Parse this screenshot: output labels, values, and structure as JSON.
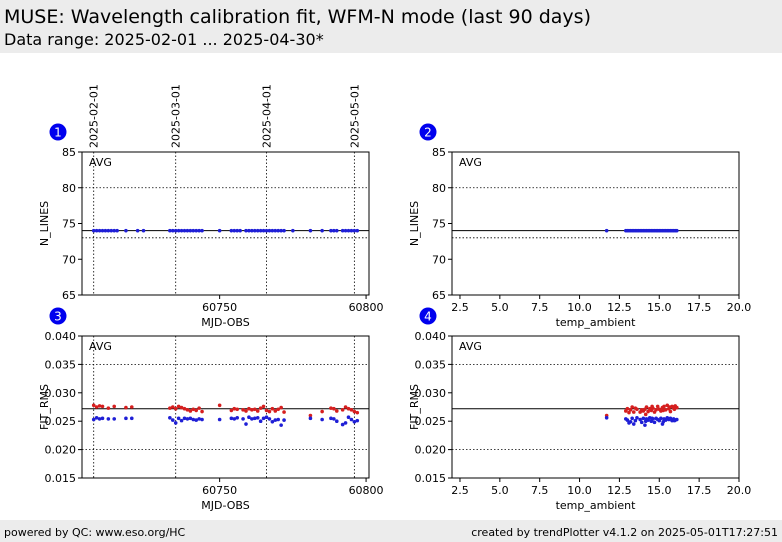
{
  "header": {
    "title": "MUSE: Wavelength calibration fit, WFM-N mode (last 90 days)",
    "subtitle": "Data range: 2025-02-01 ... 2025-04-30*"
  },
  "footer": {
    "left": "powered by QC: www.eso.org/HC",
    "right": "created by trendPlotter v4.1.2 on 2025-05-01T17:27:51"
  },
  "colors": {
    "marker_number_bg": "#0000ee",
    "series_blue": "#1f1fd6",
    "series_red": "#d61f1f",
    "header_bg": "#ececec"
  },
  "date_markers": [
    {
      "label": "2025-02-01",
      "mjd": 60707
    },
    {
      "label": "2025-03-01",
      "mjd": 60735
    },
    {
      "label": "2025-04-01",
      "mjd": 60766
    },
    {
      "label": "2025-05-01",
      "mjd": 60796
    }
  ],
  "chart_data": [
    {
      "panel": 1,
      "type": "scatter",
      "annotation": "AVG",
      "xlabel": "MJD-OBS",
      "ylabel": "N_LINES",
      "xlim": [
        60703,
        60801
      ],
      "ylim": [
        65,
        85
      ],
      "xticks": [
        60750,
        60800
      ],
      "yticks": [
        65,
        70,
        75,
        80,
        85
      ],
      "ref_line": 74,
      "dotted_lines": [
        80,
        73
      ],
      "vlines": [
        60707,
        60735,
        60766,
        60796
      ],
      "series": [
        {
          "color": "blue",
          "x": [
            60707,
            60708,
            60709,
            60710,
            60711,
            60712,
            60713,
            60714,
            60715,
            60718,
            60722,
            60724,
            60733,
            60734,
            60735,
            60736,
            60737,
            60738,
            60739,
            60740,
            60741,
            60742,
            60743,
            60744,
            60750,
            60754,
            60755,
            60756,
            60757,
            60759,
            60760,
            60761,
            60762,
            60763,
            60764,
            60765,
            60766,
            60767,
            60768,
            60769,
            60770,
            60771,
            60772,
            60775,
            60781,
            60785,
            60788,
            60789,
            60790,
            60792,
            60793,
            60794,
            60795,
            60796,
            60797
          ],
          "y": [
            74,
            74,
            74,
            74,
            74,
            74,
            74,
            74,
            74,
            74,
            74,
            74,
            74,
            74,
            74,
            74,
            74,
            74,
            74,
            74,
            74,
            74,
            74,
            74,
            74,
            74,
            74,
            74,
            74,
            74,
            74,
            74,
            74,
            74,
            74,
            74,
            74,
            74,
            74,
            74,
            74,
            74,
            74,
            74,
            74,
            74,
            74,
            74,
            74,
            74,
            74,
            74,
            74,
            74,
            74
          ]
        }
      ]
    },
    {
      "panel": 2,
      "type": "scatter",
      "annotation": "AVG",
      "xlabel": "temp_ambient",
      "ylabel": "N_LINES",
      "xlim": [
        2.0,
        20.0
      ],
      "ylim": [
        65,
        85
      ],
      "xticks": [
        2.5,
        5.0,
        7.5,
        10.0,
        12.5,
        15.0,
        17.5,
        20.0
      ],
      "yticks": [
        65,
        70,
        75,
        80,
        85
      ],
      "ref_line": 74,
      "dotted_lines": [
        80,
        73
      ],
      "series": [
        {
          "color": "blue",
          "x": [
            11.7,
            12.9,
            13.0,
            13.1,
            13.2,
            13.3,
            13.4,
            13.5,
            13.6,
            13.7,
            13.8,
            13.9,
            14.0,
            14.1,
            14.2,
            14.3,
            14.4,
            14.5,
            14.6,
            14.7,
            14.8,
            14.9,
            15.0,
            15.1,
            15.2,
            15.3,
            15.4,
            15.5,
            15.6,
            15.7,
            15.8,
            15.9,
            16.0,
            16.1
          ],
          "y": [
            74,
            74,
            74,
            74,
            74,
            74,
            74,
            74,
            74,
            74,
            74,
            74,
            74,
            74,
            74,
            74,
            74,
            74,
            74,
            74,
            74,
            74,
            74,
            74,
            74,
            74,
            74,
            74,
            74,
            74,
            74,
            74,
            74,
            74
          ]
        }
      ]
    },
    {
      "panel": 3,
      "type": "scatter",
      "annotation": "AVG",
      "xlabel": "MJD-OBS",
      "ylabel": "FIT_RMS",
      "xlim": [
        60703,
        60801
      ],
      "ylim": [
        0.015,
        0.04
      ],
      "xticks": [
        60750,
        60800
      ],
      "yticks": [
        0.015,
        0.02,
        0.025,
        0.03,
        0.035,
        0.04
      ],
      "ref_line": 0.0272,
      "dotted_lines": [
        0.035,
        0.02
      ],
      "vlines": [
        60707,
        60735,
        60766,
        60796
      ],
      "series": [
        {
          "color": "red",
          "x": [
            60707,
            60708,
            60709,
            60710,
            60712,
            60714,
            60718,
            60720,
            60733,
            60734,
            60735,
            60736,
            60737,
            60738,
            60739,
            60740,
            60741,
            60742,
            60743,
            60744,
            60750,
            60754,
            60755,
            60756,
            60758,
            60759,
            60760,
            60761,
            60762,
            60763,
            60764,
            60765,
            60766,
            60767,
            60768,
            60769,
            60770,
            60771,
            60772,
            60781,
            60785,
            60788,
            60789,
            60790,
            60792,
            60793,
            60794,
            60795,
            60796,
            60797
          ],
          "y": [
            0.0278,
            0.0275,
            0.0277,
            0.0276,
            0.0273,
            0.0276,
            0.0274,
            0.0275,
            0.0273,
            0.0275,
            0.0272,
            0.0276,
            0.0274,
            0.0272,
            0.027,
            0.0268,
            0.0271,
            0.0269,
            0.0273,
            0.0267,
            0.0278,
            0.0269,
            0.0272,
            0.0271,
            0.027,
            0.0268,
            0.0272,
            0.027,
            0.0271,
            0.0268,
            0.0273,
            0.0276,
            0.0269,
            0.0267,
            0.0272,
            0.0268,
            0.0271,
            0.0274,
            0.0266,
            0.026,
            0.0267,
            0.0273,
            0.0272,
            0.0268,
            0.027,
            0.0275,
            0.0272,
            0.027,
            0.0267,
            0.0265
          ]
        },
        {
          "color": "blue",
          "x": [
            60707,
            60708,
            60709,
            60710,
            60712,
            60714,
            60718,
            60720,
            60733,
            60734,
            60735,
            60736,
            60737,
            60738,
            60739,
            60740,
            60741,
            60742,
            60743,
            60744,
            60750,
            60754,
            60755,
            60756,
            60758,
            60759,
            60760,
            60761,
            60762,
            60763,
            60764,
            60765,
            60766,
            60767,
            60768,
            60769,
            60770,
            60771,
            60772,
            60781,
            60785,
            60788,
            60789,
            60790,
            60792,
            60793,
            60794,
            60795,
            60796,
            60797
          ],
          "y": [
            0.0253,
            0.0256,
            0.0254,
            0.0255,
            0.0254,
            0.0254,
            0.0255,
            0.0255,
            0.0256,
            0.0252,
            0.0247,
            0.0255,
            0.0251,
            0.0255,
            0.0254,
            0.0255,
            0.0253,
            0.0252,
            0.0254,
            0.0253,
            0.0253,
            0.0255,
            0.0254,
            0.0256,
            0.0254,
            0.0245,
            0.0257,
            0.0254,
            0.0255,
            0.0256,
            0.025,
            0.0255,
            0.0257,
            0.0254,
            0.0249,
            0.0252,
            0.0253,
            0.0243,
            0.0252,
            0.0255,
            0.0253,
            0.0255,
            0.0254,
            0.025,
            0.0244,
            0.0247,
            0.0257,
            0.0253,
            0.0249,
            0.0251
          ]
        }
      ]
    },
    {
      "panel": 4,
      "type": "scatter",
      "annotation": "AVG",
      "xlabel": "temp_ambient",
      "ylabel": "FIT_RMS",
      "xlim": [
        2.0,
        20.0
      ],
      "ylim": [
        0.015,
        0.04
      ],
      "xticks": [
        2.5,
        5.0,
        7.5,
        10.0,
        12.5,
        15.0,
        17.5,
        20.0
      ],
      "yticks": [
        0.015,
        0.02,
        0.025,
        0.03,
        0.035,
        0.04
      ],
      "ref_line": 0.0272,
      "dotted_lines": [
        0.035,
        0.02
      ],
      "series": [
        {
          "color": "red",
          "x": [
            11.7,
            12.9,
            13.0,
            13.2,
            13.3,
            13.4,
            13.5,
            13.6,
            13.8,
            13.9,
            14.0,
            14.1,
            14.2,
            14.3,
            14.4,
            14.5,
            14.6,
            14.7,
            14.8,
            14.9,
            15.0,
            15.1,
            15.2,
            15.3,
            15.4,
            15.5,
            15.6,
            15.7,
            15.8,
            15.9,
            16.0,
            16.1,
            13.1,
            14.15,
            14.55,
            15.25,
            15.65,
            15.95
          ],
          "y": [
            0.026,
            0.0268,
            0.0272,
            0.027,
            0.0275,
            0.0266,
            0.0273,
            0.0271,
            0.0266,
            0.027,
            0.0268,
            0.0271,
            0.0275,
            0.0267,
            0.0272,
            0.0269,
            0.0273,
            0.0266,
            0.027,
            0.0276,
            0.0271,
            0.0268,
            0.0274,
            0.0276,
            0.027,
            0.0278,
            0.0272,
            0.0267,
            0.0276,
            0.0273,
            0.0277,
            0.0274,
            0.0265,
            0.0262,
            0.0276,
            0.0269,
            0.0275,
            0.0271
          ]
        },
        {
          "color": "blue",
          "x": [
            11.7,
            12.9,
            13.0,
            13.2,
            13.3,
            13.4,
            13.5,
            13.6,
            13.8,
            13.9,
            14.0,
            14.1,
            14.2,
            14.3,
            14.4,
            14.5,
            14.6,
            14.7,
            14.8,
            14.9,
            15.0,
            15.1,
            15.2,
            15.3,
            15.4,
            15.5,
            15.6,
            15.7,
            15.8,
            15.9,
            16.0,
            16.1,
            13.1,
            14.15,
            14.55,
            15.25,
            15.65,
            15.95
          ],
          "y": [
            0.0256,
            0.0254,
            0.0252,
            0.0249,
            0.0255,
            0.0245,
            0.0251,
            0.0256,
            0.0253,
            0.0248,
            0.0255,
            0.0243,
            0.0254,
            0.0252,
            0.0256,
            0.025,
            0.0254,
            0.0248,
            0.0255,
            0.0253,
            0.0251,
            0.0255,
            0.0245,
            0.0254,
            0.0252,
            0.0256,
            0.0253,
            0.0255,
            0.0251,
            0.0254,
            0.0252,
            0.0253,
            0.0247,
            0.025,
            0.0255,
            0.0249,
            0.0254,
            0.0251
          ]
        }
      ]
    }
  ]
}
